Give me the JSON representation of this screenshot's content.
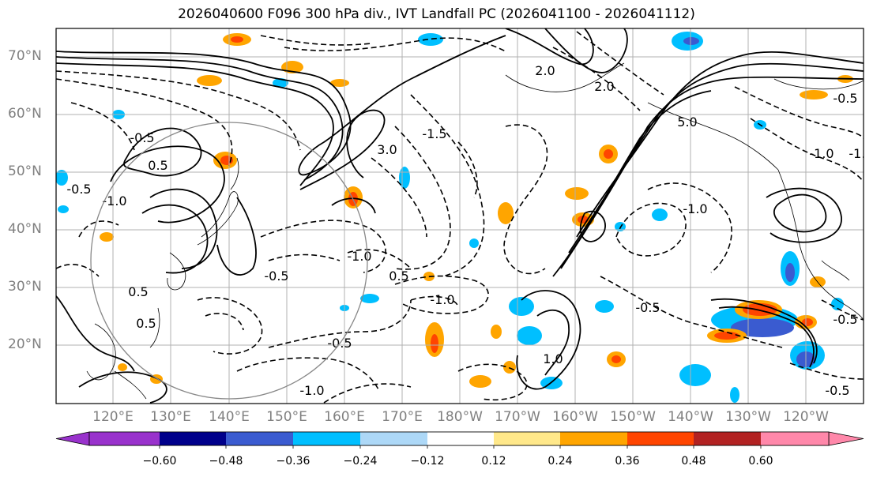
{
  "title": "2026040600 F096 300 hPa div., IVT Landfall PC (2026041100 - 2026041112)",
  "lat_labels": [
    "70°N",
    "60°N",
    "50°N",
    "40°N",
    "30°N",
    "20°N"
  ],
  "lon_labels": [
    "120°E",
    "130°E",
    "140°E",
    "150°E",
    "160°E",
    "170°E",
    "180°W",
    "170°W",
    "160°W",
    "150°W",
    "140°W",
    "130°W",
    "120°W"
  ],
  "colorbar": {
    "ticks": [
      "−0.60",
      "−0.48",
      "−0.36",
      "−0.24",
      "−0.12",
      "0.12",
      "0.24",
      "0.36",
      "0.48",
      "0.60"
    ],
    "colors": [
      "#9932cc",
      "#00008b",
      "#3a5bd0",
      "#00bfff",
      "#add8f7",
      "#ffffff",
      "#ffe88a",
      "#ffa500",
      "#ff4500",
      "#b22222",
      "#ff88aa"
    ]
  },
  "contour_labels": [
    {
      "text": "-0.5"
    },
    {
      "text": "-1.0"
    },
    {
      "text": "-1.5"
    },
    {
      "text": "-1.0"
    },
    {
      "text": "-0.5"
    },
    {
      "text": "-1.0"
    },
    {
      "text": "-0.5"
    },
    {
      "text": "-1.0"
    },
    {
      "text": "-0.5"
    },
    {
      "text": "-0.5"
    },
    {
      "text": "-1.0"
    },
    {
      "text": "-0.5"
    },
    {
      "text": "0.5"
    },
    {
      "text": "0.5"
    },
    {
      "text": "0.5"
    },
    {
      "text": "1.0"
    },
    {
      "text": "2.0"
    },
    {
      "text": "3.0"
    },
    {
      "text": "5.0"
    },
    {
      "text": "2.0"
    },
    {
      "text": "-0.5"
    },
    {
      "text": "-1.0"
    },
    {
      "text": "0.5"
    },
    {
      "text": "-0.5"
    },
    {
      "text": "-1.0"
    }
  ]
}
